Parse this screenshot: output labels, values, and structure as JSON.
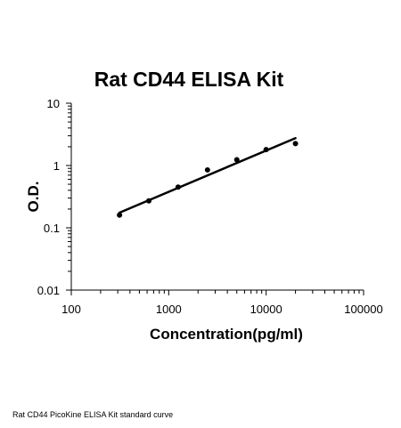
{
  "chart_data": {
    "type": "scatter",
    "title": "Rat CD44 ELISA Kit",
    "xlabel": "Concentration(pg/ml)",
    "ylabel": "O.D.",
    "xscale": "log",
    "yscale": "log",
    "xlim": [
      100,
      100000
    ],
    "ylim": [
      0.01,
      10
    ],
    "x_ticks": [
      "100",
      "1000",
      "10000",
      "100000"
    ],
    "y_ticks": [
      "0.01",
      "0.1",
      "1",
      "10"
    ],
    "grid": false,
    "legend": "none",
    "points": [
      {
        "x": 312.5,
        "y": 0.16
      },
      {
        "x": 625,
        "y": 0.27
      },
      {
        "x": 1250,
        "y": 0.45
      },
      {
        "x": 2500,
        "y": 0.85
      },
      {
        "x": 5000,
        "y": 1.24
      },
      {
        "x": 10000,
        "y": 1.8
      },
      {
        "x": 20000,
        "y": 2.25
      }
    ],
    "fit_line": {
      "x": [
        312.5,
        20000
      ],
      "y": [
        0.175,
        2.75
      ]
    },
    "colors": {
      "points": "#000000",
      "line": "#000000",
      "axis": "#000000"
    }
  },
  "caption": "Rat CD44 PicoKine ELISA Kit standard curve"
}
